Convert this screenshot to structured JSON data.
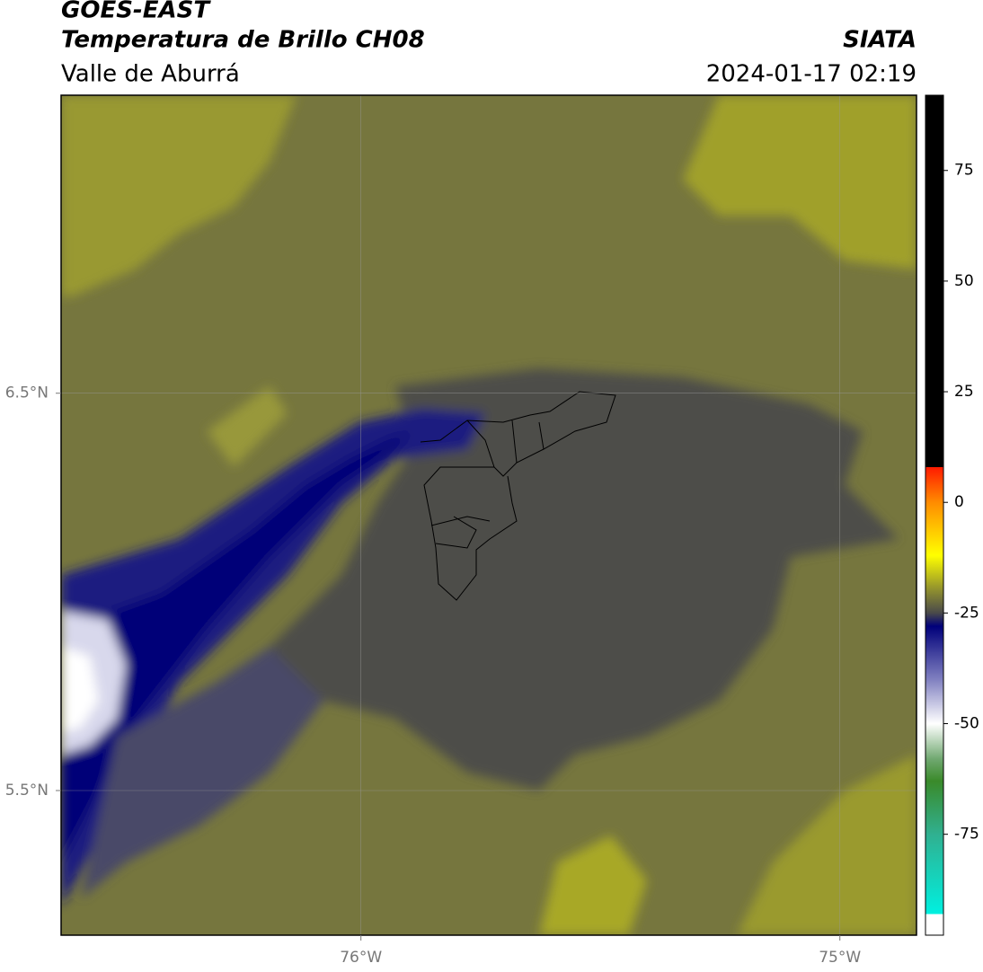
{
  "header": {
    "title": "GOES-EAST",
    "subtitle": "Temperatura de Brillo CH08",
    "region": "Valle de Aburrá",
    "source": "SIATA",
    "datetime": "2024-01-17 02:19"
  },
  "map": {
    "xlim": [
      -76.626,
      -74.84
    ],
    "ylim": [
      5.136,
      7.25
    ],
    "xticks": [
      {
        "value": -76,
        "label": "76°W"
      },
      {
        "value": -75,
        "label": "75°W"
      }
    ],
    "yticks": [
      {
        "value": 6.5,
        "label": "6.5°N"
      },
      {
        "value": 5.5,
        "label": "5.5°N"
      }
    ],
    "grid": true
  },
  "colorbar": {
    "lim": [
      -97.8,
      92
    ],
    "ticks": [
      75,
      50,
      25,
      0,
      -25,
      -50,
      -75
    ],
    "stops": [
      [
        92,
        "#000000"
      ],
      [
        8,
        "#000000"
      ],
      [
        8,
        "#ff1a00"
      ],
      [
        0,
        "#ff8c00"
      ],
      [
        -12,
        "#ffff00"
      ],
      [
        -20,
        "#8c8c30"
      ],
      [
        -25,
        "#4a4a4a"
      ],
      [
        -28,
        "#00007a"
      ],
      [
        -40,
        "#8080c0"
      ],
      [
        -50,
        "#ffffff"
      ],
      [
        -58,
        "#70a870"
      ],
      [
        -63,
        "#3a8a2a"
      ],
      [
        -75,
        "#30b090"
      ],
      [
        -93,
        "#00f0e0"
      ],
      [
        -93,
        "#ffffff"
      ],
      [
        -97.8,
        "#ffffff"
      ]
    ]
  }
}
